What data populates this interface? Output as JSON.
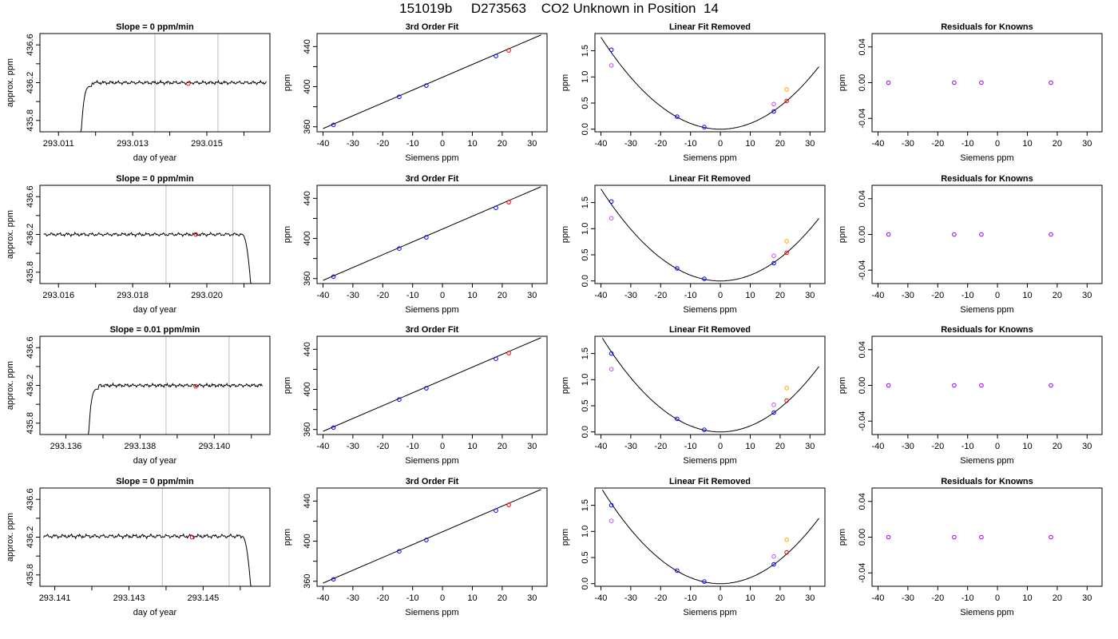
{
  "figure": {
    "title": "151019b     D273563    CO2 Unknown in Position  14"
  },
  "colors": {
    "known": "#0000ff",
    "unknown": "#ff0000",
    "residual": "#9900ff",
    "linear_fit_pts": "#cc44ff",
    "unknown_lin": "#ffa500",
    "guide": "#bebebe",
    "curve": "#000000"
  },
  "chart_data": [
    {
      "type": "line",
      "row": 1,
      "title": "Slope =  0  ppm/min",
      "xlabel": "day of year",
      "ylabel": "approx. ppm",
      "xlim": [
        293.0105,
        293.0167
      ],
      "ylim": [
        435.68,
        436.72
      ],
      "xticks": [
        293.011,
        293.012,
        293.013,
        293.014,
        293.015,
        293.016
      ],
      "xtick_labels": [
        "293.011",
        "",
        "293.013",
        "",
        "293.015",
        ""
      ],
      "yticks": [
        435.8,
        436.0,
        436.2,
        436.4,
        436.6
      ],
      "ytick_labels": [
        "435.8",
        "",
        "436.2",
        "",
        "436.6"
      ],
      "trace": {
        "start": 293.0116,
        "end": 293.0166,
        "level": 436.2,
        "amp": 0.012,
        "direction": "up"
      },
      "guides": [
        293.0136,
        293.0153
      ],
      "marker": {
        "x": 293.0145,
        "y": 436.19
      }
    },
    {
      "type": "line",
      "title": "3rd Order Fit",
      "xlabel": "Siemens ppm",
      "ylabel": "ppm",
      "xlim": [
        -42,
        35
      ],
      "ylim": [
        355,
        453
      ],
      "xticks": [
        -40,
        -30,
        -20,
        -10,
        0,
        10,
        20,
        30
      ],
      "xtick_labels": [
        "-40",
        "-30",
        "-20",
        "-10",
        "0",
        "10",
        "20",
        "30"
      ],
      "yticks": [
        360,
        380,
        400,
        420,
        440
      ],
      "ytick_labels": [
        "360",
        "",
        "400",
        "",
        "440"
      ],
      "line": {
        "x": [
          -40,
          33
        ],
        "y": [
          358.2,
          451.6
        ]
      },
      "knowns": {
        "x": [
          -36.5,
          -14.5,
          -5.4,
          17.9
        ],
        "y": [
          361.9,
          389.9,
          401.1,
          430.5
        ]
      },
      "unknown": {
        "x": [
          22.2,
          436.2
        ]
      }
    },
    {
      "type": "scatter",
      "title": "Linear Fit Removed",
      "xlabel": "Siemens ppm",
      "ylabel": "ppm",
      "xlim": [
        -42,
        35
      ],
      "ylim": [
        -0.05,
        1.83
      ],
      "xticks": [
        -40,
        -30,
        -20,
        -10,
        0,
        10,
        20,
        30
      ],
      "xtick_labels": [
        "-40",
        "-30",
        "-20",
        "-10",
        "0",
        "10",
        "20",
        "30"
      ],
      "yticks": [
        0.0,
        0.5,
        1.0,
        1.5
      ],
      "ytick_labels": [
        "0.0",
        "0.5",
        "1.0",
        "1.5"
      ],
      "curve_k": 0.0011,
      "knowns": {
        "x": [
          -36.5,
          -14.5,
          -5.4,
          17.9
        ],
        "y": [
          1.52,
          0.24,
          0.04,
          0.34
        ]
      },
      "linear_pts": {
        "x": [
          -36.5,
          17.9
        ],
        "y": [
          1.22,
          0.48
        ]
      },
      "unknown": {
        "x": 22.2,
        "y": 0.54
      },
      "unknown_lin": {
        "x": 22.2,
        "y": 0.76
      }
    },
    {
      "type": "scatter",
      "title": "Residuals for Knowns",
      "xlabel": "Siemens ppm",
      "ylabel": "ppm",
      "xlim": [
        -42,
        35
      ],
      "ylim": [
        -0.055,
        0.055
      ],
      "xticks": [
        -40,
        -30,
        -20,
        -10,
        0,
        10,
        20,
        30
      ],
      "xtick_labels": [
        "-40",
        "-30",
        "-20",
        "-10",
        "0",
        "10",
        "20",
        "30"
      ],
      "yticks": [
        -0.04,
        0.0,
        0.04
      ],
      "ytick_labels": [
        "-0.04",
        "0.00",
        "0.04"
      ],
      "points": {
        "x": [
          -36.5,
          -14.5,
          -5.4,
          17.9
        ],
        "y": [
          0,
          0,
          0,
          0
        ]
      }
    },
    {
      "type": "line",
      "row": 2,
      "title": "Slope =  0  ppm/min",
      "xlabel": "day of year",
      "ylabel": "approx. ppm",
      "xlim": [
        293.0155,
        293.0217
      ],
      "ylim": [
        435.68,
        436.72
      ],
      "xticks": [
        293.016,
        293.017,
        293.018,
        293.019,
        293.02,
        293.021
      ],
      "xtick_labels": [
        "293.016",
        "",
        "293.018",
        "",
        "293.020",
        ""
      ],
      "yticks": [
        435.8,
        436.0,
        436.2,
        436.4,
        436.6
      ],
      "ytick_labels": [
        "435.8",
        "",
        "436.2",
        "",
        "436.6"
      ],
      "trace": {
        "start": 293.0156,
        "end": 293.0212,
        "level": 436.2,
        "amp": 0.012,
        "direction": "down"
      },
      "guides": [
        293.0189,
        293.0207
      ],
      "marker": {
        "x": 293.0197,
        "y": 436.2
      }
    },
    {
      "type": "line",
      "title": "3rd Order Fit",
      "xlabel": "Siemens ppm",
      "ylabel": "ppm",
      "xlim": [
        -42,
        35
      ],
      "ylim": [
        355,
        453
      ],
      "xticks": [
        -40,
        -30,
        -20,
        -10,
        0,
        10,
        20,
        30
      ],
      "xtick_labels": [
        "-40",
        "-30",
        "-20",
        "-10",
        "0",
        "10",
        "20",
        "30"
      ],
      "yticks": [
        360,
        380,
        400,
        420,
        440
      ],
      "ytick_labels": [
        "360",
        "",
        "400",
        "",
        "440"
      ],
      "line": {
        "x": [
          -40,
          33
        ],
        "y": [
          358.2,
          451.6
        ]
      },
      "knowns": {
        "x": [
          -36.5,
          -14.5,
          -5.4,
          17.9
        ],
        "y": [
          361.9,
          389.9,
          401.1,
          430.5
        ]
      },
      "unknown": {
        "x": [
          22.2,
          436.2
        ]
      }
    },
    {
      "type": "scatter",
      "title": "Linear Fit Removed",
      "xlabel": "Siemens ppm",
      "ylabel": "ppm",
      "xlim": [
        -42,
        35
      ],
      "ylim": [
        -0.05,
        1.83
      ],
      "xticks": [
        -40,
        -30,
        -20,
        -10,
        0,
        10,
        20,
        30
      ],
      "xtick_labels": [
        "-40",
        "-30",
        "-20",
        "-10",
        "0",
        "10",
        "20",
        "30"
      ],
      "yticks": [
        0.0,
        0.5,
        1.0,
        1.5
      ],
      "ytick_labels": [
        "0.0",
        "0.5",
        "1.0",
        "1.5"
      ],
      "curve_k": 0.0011,
      "knowns": {
        "x": [
          -36.5,
          -14.5,
          -5.4,
          17.9
        ],
        "y": [
          1.52,
          0.24,
          0.04,
          0.34
        ]
      },
      "linear_pts": {
        "x": [
          -36.5,
          17.9
        ],
        "y": [
          1.2,
          0.48
        ]
      },
      "unknown": {
        "x": 22.2,
        "y": 0.54
      },
      "unknown_lin": {
        "x": 22.2,
        "y": 0.76
      }
    },
    {
      "type": "scatter",
      "title": "Residuals for Knowns",
      "xlabel": "Siemens ppm",
      "ylabel": "ppm",
      "xlim": [
        -42,
        35
      ],
      "ylim": [
        -0.055,
        0.055
      ],
      "xticks": [
        -40,
        -30,
        -20,
        -10,
        0,
        10,
        20,
        30
      ],
      "xtick_labels": [
        "-40",
        "-30",
        "-20",
        "-10",
        "0",
        "10",
        "20",
        "30"
      ],
      "yticks": [
        -0.04,
        0.0,
        0.04
      ],
      "ytick_labels": [
        "-0.04",
        "0.00",
        "0.04"
      ],
      "points": {
        "x": [
          -36.5,
          -14.5,
          -5.4,
          17.9
        ],
        "y": [
          0,
          0,
          0,
          0
        ]
      }
    },
    {
      "type": "line",
      "row": 3,
      "title": "Slope =  0.01  ppm/min",
      "xlabel": "day of year",
      "ylabel": "approx. ppm",
      "xlim": [
        293.1353,
        293.1415
      ],
      "ylim": [
        435.68,
        436.72
      ],
      "xticks": [
        293.136,
        293.137,
        293.138,
        293.139,
        293.14,
        293.141
      ],
      "xtick_labels": [
        "293.136",
        "",
        "293.138",
        "",
        "293.140",
        ""
      ],
      "yticks": [
        435.8,
        436.0,
        436.2,
        436.4,
        436.6
      ],
      "ytick_labels": [
        "435.8",
        "",
        "436.2",
        "",
        "436.6"
      ],
      "trace": {
        "start": 293.1366,
        "end": 293.1413,
        "level": 436.2,
        "amp": 0.012,
        "direction": "up"
      },
      "guides": [
        293.1387,
        293.1404
      ],
      "marker": {
        "x": 293.1395,
        "y": 436.19
      }
    },
    {
      "type": "line",
      "title": "3rd Order Fit",
      "xlabel": "Siemens ppm",
      "ylabel": "ppm",
      "xlim": [
        -42,
        35
      ],
      "ylim": [
        355,
        453
      ],
      "xticks": [
        -40,
        -30,
        -20,
        -10,
        0,
        10,
        20,
        30
      ],
      "xtick_labels": [
        "-40",
        "-30",
        "-20",
        "-10",
        "0",
        "10",
        "20",
        "30"
      ],
      "yticks": [
        360,
        380,
        400,
        420,
        440
      ],
      "ytick_labels": [
        "360",
        "",
        "400",
        "",
        "440"
      ],
      "line": {
        "x": [
          -40,
          33
        ],
        "y": [
          358.2,
          451.6
        ]
      },
      "knowns": {
        "x": [
          -36.5,
          -14.5,
          -5.4,
          17.9
        ],
        "y": [
          361.9,
          389.9,
          401.1,
          430.5
        ]
      },
      "unknown": {
        "x": [
          22.2,
          436.2
        ]
      }
    },
    {
      "type": "scatter",
      "title": "Linear Fit Removed",
      "xlabel": "Siemens ppm",
      "ylabel": "ppm",
      "xlim": [
        -42,
        35
      ],
      "ylim": [
        -0.05,
        1.83
      ],
      "xticks": [
        -40,
        -30,
        -20,
        -10,
        0,
        10,
        20,
        30
      ],
      "xtick_labels": [
        "-40",
        "-30",
        "-20",
        "-10",
        "0",
        "10",
        "20",
        "30"
      ],
      "yticks": [
        0.0,
        0.5,
        1.0,
        1.5
      ],
      "ytick_labels": [
        "0.0",
        "0.5",
        "1.0",
        "1.5"
      ],
      "curve_k": 0.00115,
      "knowns": {
        "x": [
          -36.5,
          -14.5,
          -5.4,
          17.9
        ],
        "y": [
          1.5,
          0.25,
          0.04,
          0.37
        ]
      },
      "linear_pts": {
        "x": [
          -36.5,
          17.9
        ],
        "y": [
          1.2,
          0.52
        ]
      },
      "unknown": {
        "x": 22.2,
        "y": 0.6
      },
      "unknown_lin": {
        "x": 22.2,
        "y": 0.84
      }
    },
    {
      "type": "scatter",
      "title": "Residuals for Knowns",
      "xlabel": "Siemens ppm",
      "ylabel": "ppm",
      "xlim": [
        -42,
        35
      ],
      "ylim": [
        -0.055,
        0.055
      ],
      "xticks": [
        -40,
        -30,
        -20,
        -10,
        0,
        10,
        20,
        30
      ],
      "xtick_labels": [
        "-40",
        "-30",
        "-20",
        "-10",
        "0",
        "10",
        "20",
        "30"
      ],
      "yticks": [
        -0.04,
        0.0,
        0.04
      ],
      "ytick_labels": [
        "-0.04",
        "0.00",
        "0.04"
      ],
      "points": {
        "x": [
          -36.5,
          -14.5,
          -5.4,
          17.9
        ],
        "y": [
          0,
          0,
          0,
          0
        ]
      }
    },
    {
      "type": "line",
      "row": 4,
      "title": "Slope =  0  ppm/min",
      "xlabel": "day of year",
      "ylabel": "approx. ppm",
      "xlim": [
        293.1406,
        293.1468
      ],
      "ylim": [
        435.68,
        436.72
      ],
      "xticks": [
        293.141,
        293.142,
        293.143,
        293.144,
        293.145,
        293.146
      ],
      "xtick_labels": [
        "293.141",
        "",
        "293.143",
        "",
        "293.145",
        ""
      ],
      "yticks": [
        435.8,
        436.0,
        436.2,
        436.4,
        436.6
      ],
      "ytick_labels": [
        "435.8",
        "",
        "436.2",
        "",
        "436.6"
      ],
      "trace": {
        "start": 293.1407,
        "end": 293.1463,
        "level": 436.21,
        "amp": 0.014,
        "direction": "down"
      },
      "guides": [
        293.1439,
        293.1457
      ],
      "marker": {
        "x": 293.1447,
        "y": 436.2
      }
    },
    {
      "type": "line",
      "title": "3rd Order Fit",
      "xlabel": "Siemens ppm",
      "ylabel": "ppm",
      "xlim": [
        -42,
        35
      ],
      "ylim": [
        355,
        453
      ],
      "xticks": [
        -40,
        -30,
        -20,
        -10,
        0,
        10,
        20,
        30
      ],
      "xtick_labels": [
        "-40",
        "-30",
        "-20",
        "-10",
        "0",
        "10",
        "20",
        "30"
      ],
      "yticks": [
        360,
        380,
        400,
        420,
        440
      ],
      "ytick_labels": [
        "360",
        "",
        "400",
        "",
        "440"
      ],
      "line": {
        "x": [
          -40,
          33
        ],
        "y": [
          358.2,
          451.6
        ]
      },
      "knowns": {
        "x": [
          -36.5,
          -14.5,
          -5.4,
          17.9
        ],
        "y": [
          361.9,
          389.9,
          401.1,
          430.5
        ]
      },
      "unknown": {
        "x": [
          22.2,
          436.2
        ]
      }
    },
    {
      "type": "scatter",
      "title": "Linear Fit Removed",
      "xlabel": "Siemens ppm",
      "ylabel": "ppm",
      "xlim": [
        -42,
        35
      ],
      "ylim": [
        -0.05,
        1.83
      ],
      "xticks": [
        -40,
        -30,
        -20,
        -10,
        0,
        10,
        20,
        30
      ],
      "xtick_labels": [
        "-40",
        "-30",
        "-20",
        "-10",
        "0",
        "10",
        "20",
        "30"
      ],
      "yticks": [
        0.0,
        0.5,
        1.0,
        1.5
      ],
      "ytick_labels": [
        "0.0",
        "0.5",
        "1.0",
        "1.5"
      ],
      "curve_k": 0.00115,
      "knowns": {
        "x": [
          -36.5,
          -14.5,
          -5.4,
          17.9
        ],
        "y": [
          1.5,
          0.25,
          0.04,
          0.37
        ]
      },
      "linear_pts": {
        "x": [
          -36.5,
          17.9
        ],
        "y": [
          1.2,
          0.52
        ]
      },
      "unknown": {
        "x": 22.2,
        "y": 0.6
      },
      "unknown_lin": {
        "x": 22.2,
        "y": 0.84
      }
    },
    {
      "type": "scatter",
      "title": "Residuals for Knowns",
      "xlabel": "Siemens ppm",
      "ylabel": "ppm",
      "xlim": [
        -42,
        35
      ],
      "ylim": [
        -0.055,
        0.055
      ],
      "xticks": [
        -40,
        -30,
        -20,
        -10,
        0,
        10,
        20,
        30
      ],
      "xtick_labels": [
        "-40",
        "-30",
        "-20",
        "-10",
        "0",
        "10",
        "20",
        "30"
      ],
      "yticks": [
        -0.04,
        0.0,
        0.04
      ],
      "ytick_labels": [
        "-0.04",
        "0.00",
        "0.04"
      ],
      "points": {
        "x": [
          -36.5,
          -14.5,
          -5.4,
          17.9
        ],
        "y": [
          0,
          0,
          0,
          0
        ]
      }
    }
  ]
}
